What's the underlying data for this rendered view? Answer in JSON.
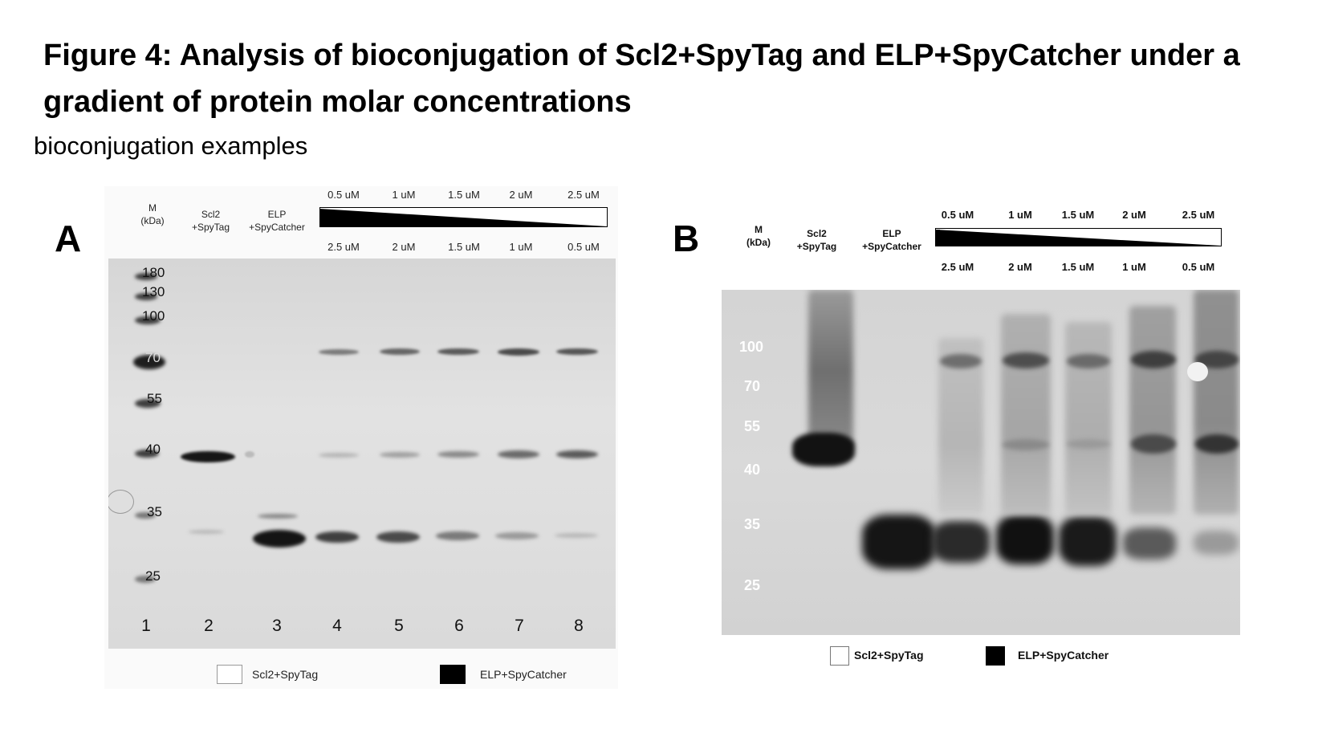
{
  "title": "Figure 4: Analysis of bioconjugation of Scl2+SpyTag and ELP+SpyCatcher under a gradient of protein molar concentrations",
  "subtitle": "bioconjugation examples",
  "colors": {
    "gel_background": "#d6d6d6",
    "band_dark": "#1a1a1a",
    "marker_b_text": "#ffffff"
  },
  "panel_a": {
    "letter": "A",
    "marker_header": "M\n(kDa)",
    "lane_headers": [
      "Scl2\n+SpyTag",
      "ELP\n+SpyCatcher"
    ],
    "top_concentrations": [
      "0.5 uM",
      "1 uM",
      "1.5 uM",
      "2 uM",
      "2.5 uM"
    ],
    "bottom_concentrations": [
      "2.5 uM",
      "2 uM",
      "1.5 uM",
      "1 uM",
      "0.5 uM"
    ],
    "marker_labels": [
      "180",
      "130",
      "100",
      "70",
      "55",
      "40",
      "35",
      "25"
    ],
    "lane_numbers": [
      "1",
      "2",
      "3",
      "4",
      "5",
      "6",
      "7",
      "8"
    ],
    "legend": [
      {
        "label": "Scl2+SpyTag",
        "fill": "#ffffff"
      },
      {
        "label": "ELP+SpyCatcher",
        "fill": "#000000"
      }
    ]
  },
  "panel_b": {
    "letter": "B",
    "marker_header": "M\n(kDa)",
    "lane_headers": [
      "Scl2\n+SpyTag",
      "ELP\n+SpyCatcher"
    ],
    "top_concentrations": [
      "0.5 uM",
      "1 uM",
      "1.5 uM",
      "2 uM",
      "2.5 uM"
    ],
    "bottom_concentrations": [
      "2.5 uM",
      "2 uM",
      "1.5 uM",
      "1 uM",
      "0.5 uM"
    ],
    "marker_labels": [
      "100",
      "70",
      "55",
      "40",
      "35",
      "25"
    ],
    "legend": [
      {
        "label": "Scl2+SpyTag",
        "fill": "#ffffff"
      },
      {
        "label": "ELP+SpyCatcher",
        "fill": "#000000"
      }
    ]
  }
}
